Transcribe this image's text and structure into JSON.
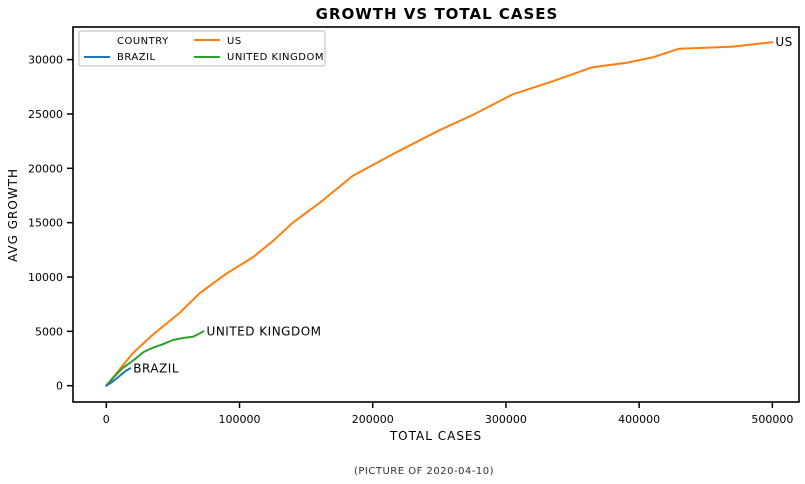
{
  "chart_data": {
    "type": "line",
    "title": "GROWTH VS TOTAL CASES",
    "xlabel": "TOTAL CASES",
    "ylabel": "AVG GROWTH",
    "caption": "(PICTURE OF 2020-04-10)",
    "xlim": [
      -25000,
      520000
    ],
    "ylim": [
      -1500,
      33000
    ],
    "x_ticks": [
      {
        "value": 0,
        "label": "0"
      },
      {
        "value": 100000,
        "label": "100000"
      },
      {
        "value": 200000,
        "label": "200000"
      },
      {
        "value": 300000,
        "label": "300000"
      },
      {
        "value": 400000,
        "label": "400000"
      },
      {
        "value": 500000,
        "label": "500000"
      }
    ],
    "y_ticks": [
      {
        "value": 0,
        "label": "0"
      },
      {
        "value": 5000,
        "label": "5000"
      },
      {
        "value": 10000,
        "label": "10000"
      },
      {
        "value": 15000,
        "label": "15000"
      },
      {
        "value": 20000,
        "label": "20000"
      },
      {
        "value": 25000,
        "label": "25000"
      },
      {
        "value": 30000,
        "label": "30000"
      }
    ],
    "grid": false,
    "legend": {
      "title": "COUNTRY",
      "placement": "top-left",
      "entries": [
        "BRAZIL",
        "US",
        "UNITED KINGDOM"
      ]
    },
    "series": [
      {
        "name": "BRAZIL",
        "color": "#1f77b4",
        "annotation": "BRAZIL",
        "points": [
          [
            0,
            0
          ],
          [
            4000,
            300
          ],
          [
            8000,
            700
          ],
          [
            12000,
            1100
          ],
          [
            15000,
            1400
          ],
          [
            18000,
            1600
          ]
        ]
      },
      {
        "name": "US",
        "color": "#ff7f0e",
        "annotation": "US",
        "points": [
          [
            0,
            0
          ],
          [
            10000,
            1500
          ],
          [
            20000,
            3000
          ],
          [
            35000,
            4700
          ],
          [
            55000,
            6700
          ],
          [
            70000,
            8500
          ],
          [
            90000,
            10300
          ],
          [
            110000,
            11800
          ],
          [
            125000,
            13300
          ],
          [
            140000,
            15000
          ],
          [
            160000,
            16800
          ],
          [
            185000,
            19300
          ],
          [
            215000,
            21300
          ],
          [
            250000,
            23500
          ],
          [
            275000,
            24900
          ],
          [
            305000,
            26800
          ],
          [
            335000,
            28000
          ],
          [
            365000,
            29300
          ],
          [
            390000,
            29700
          ],
          [
            410000,
            30200
          ],
          [
            430000,
            31000
          ],
          [
            450000,
            31100
          ],
          [
            470000,
            31200
          ],
          [
            500000,
            31600
          ]
        ]
      },
      {
        "name": "UNITED KINGDOM",
        "color": "#2ca02c",
        "annotation": "UNITED KINGDOM",
        "points": [
          [
            0,
            0
          ],
          [
            5000,
            700
          ],
          [
            12000,
            1600
          ],
          [
            20000,
            2300
          ],
          [
            28000,
            3100
          ],
          [
            35000,
            3500
          ],
          [
            42000,
            3800
          ],
          [
            50000,
            4200
          ],
          [
            58000,
            4400
          ],
          [
            65000,
            4500
          ],
          [
            70000,
            4800
          ],
          [
            73000,
            5000
          ]
        ]
      }
    ]
  }
}
